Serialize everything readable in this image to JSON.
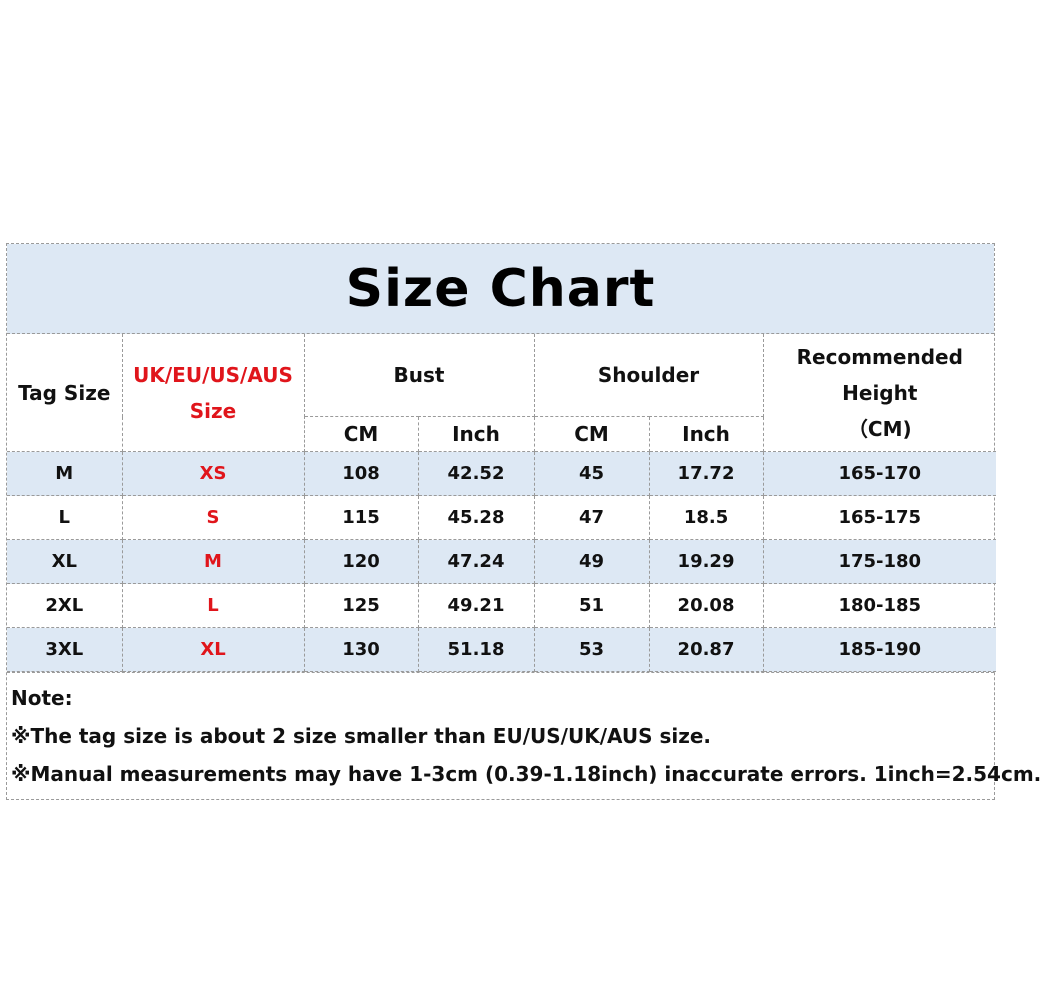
{
  "title": "Size Chart",
  "headers": {
    "tag_size": "Tag Size",
    "region_line1": "UK/EU/US/AUS",
    "region_line2": "Size",
    "bust": "Bust",
    "shoulder": "Shoulder",
    "height_line1": "Recommended Height",
    "height_line2": "（CM)",
    "cm": "CM",
    "inch": "Inch"
  },
  "rows": [
    {
      "tag": "M",
      "region": "XS",
      "bust_cm": "108",
      "bust_in": "42.52",
      "shoulder_cm": "45",
      "shoulder_in": "17.72",
      "height": "165-170"
    },
    {
      "tag": "L",
      "region": "S",
      "bust_cm": "115",
      "bust_in": "45.28",
      "shoulder_cm": "47",
      "shoulder_in": "18.5",
      "height": "165-175"
    },
    {
      "tag": "XL",
      "region": "M",
      "bust_cm": "120",
      "bust_in": "47.24",
      "shoulder_cm": "49",
      "shoulder_in": "19.29",
      "height": "175-180"
    },
    {
      "tag": "2XL",
      "region": "L",
      "bust_cm": "125",
      "bust_in": "49.21",
      "shoulder_cm": "51",
      "shoulder_in": "20.08",
      "height": "180-185"
    },
    {
      "tag": "3XL",
      "region": "XL",
      "bust_cm": "130",
      "bust_in": "51.18",
      "shoulder_cm": "53",
      "shoulder_in": "20.87",
      "height": "185-190"
    }
  ],
  "notes": {
    "label": "Note:",
    "line1": "※The tag size is about 2 size smaller than EU/US/UK/AUS size.",
    "line2": "※Manual measurements may have 1-3cm (0.39-1.18inch) inaccurate errors. 1inch=2.54cm."
  },
  "colors": {
    "header_fill": "#dde8f4",
    "region_text": "#e0151b",
    "border": "#9a9a9a"
  }
}
